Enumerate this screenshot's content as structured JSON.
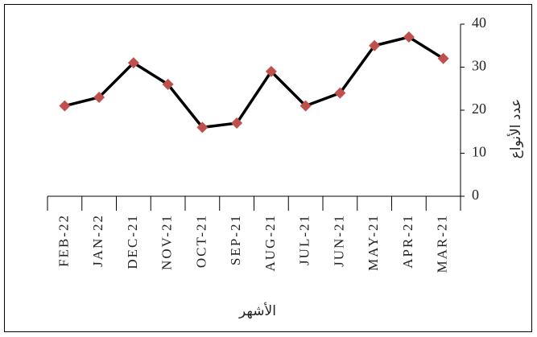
{
  "chart_data": {
    "type": "line",
    "x_axis_label": "الأشهر",
    "y_axis_label": "عدد الأنواع",
    "categories": [
      "MAR-21",
      "APR-21",
      "MAY-21",
      "JUN-21",
      "JUL-21",
      "AUG-21",
      "SEP-21",
      "OCT-21",
      "NOV-21",
      "DEC-21",
      "JAN-22",
      "FEB-22"
    ],
    "x_reversed": true,
    "y_axis_side": "right",
    "series": [
      {
        "color": "#000000",
        "marker_color": "#c0504d",
        "values": [
          32,
          37,
          35,
          24,
          21,
          29,
          17,
          16,
          26,
          31,
          23,
          21
        ]
      }
    ],
    "ylim": [
      0,
      40
    ],
    "yticks": [
      0,
      10,
      20,
      30,
      40
    ],
    "grid": false
  }
}
